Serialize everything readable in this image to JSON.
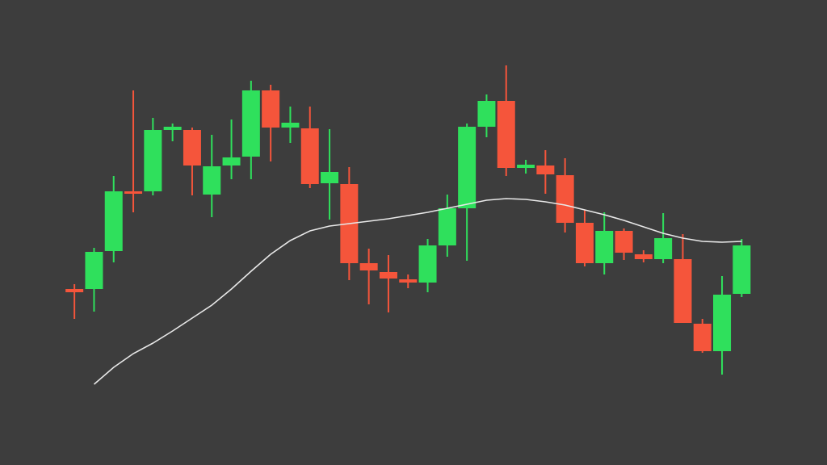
{
  "chart_data": {
    "type": "candlestick",
    "open": [
      218,
      218,
      265,
      339,
      339,
      415,
      415,
      335,
      371,
      382,
      464,
      418,
      417,
      349,
      348,
      250,
      239,
      230,
      226,
      272,
      318,
      419,
      451,
      368,
      371,
      359,
      300,
      250,
      290,
      261,
      255,
      255,
      175,
      141,
      212
    ],
    "high": [
      224,
      269,
      358,
      464,
      430,
      423,
      418,
      409,
      428,
      476,
      471,
      444,
      444,
      416,
      369,
      268,
      260,
      236,
      280,
      335,
      423,
      459,
      495,
      378,
      390,
      380,
      316,
      313,
      293,
      266,
      312,
      286,
      181,
      234,
      280
    ],
    "low": [
      181,
      190,
      251,
      313,
      334,
      401,
      334,
      307,
      354,
      354,
      376,
      399,
      343,
      304,
      229,
      199,
      189,
      219,
      214,
      258,
      253,
      406,
      358,
      361,
      336,
      288,
      246,
      236,
      254,
      251,
      250,
      176,
      139,
      112,
      208
    ],
    "close": [
      214,
      264,
      339,
      336,
      415,
      419,
      371,
      370,
      381,
      464,
      418,
      424,
      348,
      363,
      250,
      241,
      231,
      226,
      272,
      318,
      419,
      451,
      368,
      372,
      360,
      300,
      250,
      290,
      263,
      255,
      281,
      176,
      141,
      211,
      272
    ],
    "up_color": "#2fe05c",
    "down_color": "#f5553b",
    "moving_average": {
      "color": "#e8e8e8",
      "values": [
        null,
        100,
        121,
        138,
        151,
        166,
        182,
        198,
        218,
        240,
        261,
        278,
        290,
        296,
        299,
        302,
        305,
        309,
        313,
        318,
        323,
        328,
        330,
        329,
        326,
        322,
        316,
        310,
        303,
        295,
        287,
        281,
        277,
        276,
        277
      ]
    },
    "ylim": [
      0,
      576
    ]
  }
}
